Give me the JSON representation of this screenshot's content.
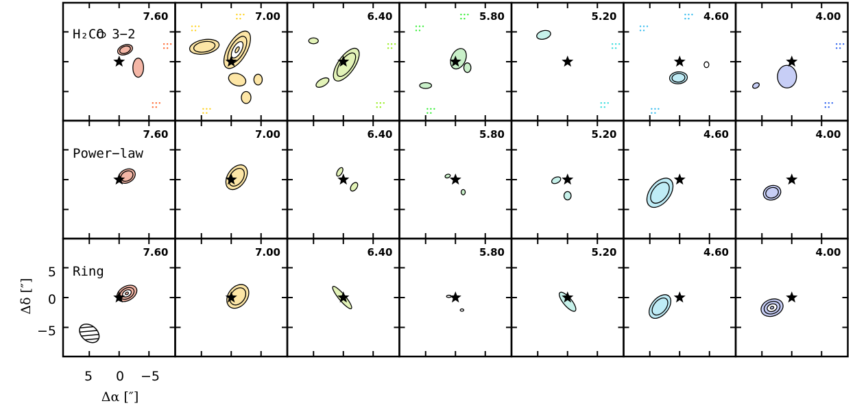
{
  "chart_data": {
    "type": "contour_channel_maps",
    "rows": [
      {
        "label": "H₂CO 3−2",
        "kind": "observed"
      },
      {
        "label": "Power−law",
        "kind": "model"
      },
      {
        "label": "Ring",
        "kind": "model"
      }
    ],
    "velocities": [
      "7.60",
      "7.00",
      "6.40",
      "5.80",
      "5.20",
      "4.60",
      "4.00"
    ],
    "channel_colors": [
      "#f4b6a6",
      "#fde6a6",
      "#e3f3b8",
      "#c9f0c9",
      "#c6f1ea",
      "#bfecf6",
      "#c7cef6"
    ],
    "noise_colors": [
      "#ff6a33",
      "#ffd11a",
      "#99ee22",
      "#33ee33",
      "#33dddd",
      "#33bbee",
      "#3366ee"
    ],
    "xlabel": "Δα [″]",
    "ylabel": "Δδ [″]",
    "xticks": [
      "5",
      "0",
      "−5"
    ],
    "yticks": [
      "5",
      "0",
      "−5"
    ],
    "xlim": [
      10,
      -10
    ],
    "ylim": [
      -10,
      10
    ],
    "source_position": [
      0,
      0
    ],
    "source_marker": "star",
    "beam": {
      "center": [
        5,
        -6
      ],
      "major": 3.5,
      "minor": 2.5,
      "pa_deg": 40,
      "fill": "hatched"
    }
  }
}
